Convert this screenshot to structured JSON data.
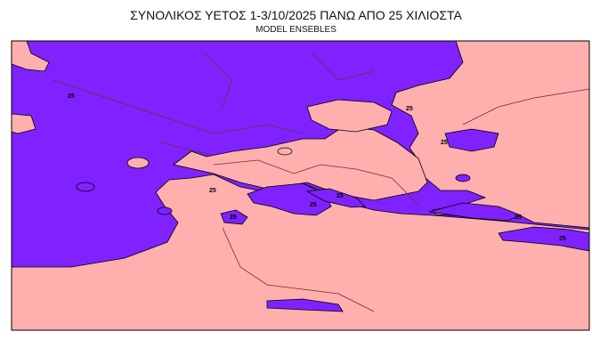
{
  "title": "ΣΥΝΟΛΙΚΟΣ ΥΕΤΟΣ 1-3/10/2025 ΠΑΝΩ ΑΠΟ 25 ΧΙΛΙΟΣΤΑ",
  "subtitle": "MODEL ENSEBLES",
  "map": {
    "region": "Greece / Aegean / Balkans",
    "threshold_mm": 25,
    "contour_label": "25",
    "colors": {
      "above_threshold": "#7f22ff",
      "below_threshold": "#ffb0ae",
      "border": "#000000"
    }
  }
}
